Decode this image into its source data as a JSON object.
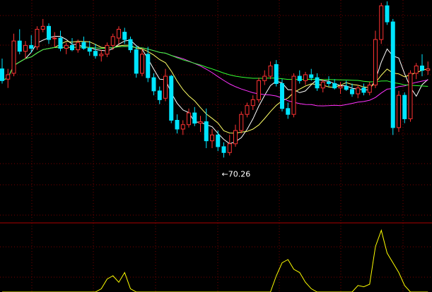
{
  "chart_data": {
    "type": "candlestick",
    "title": "",
    "grid": "dotted",
    "price_range": [
      68.5,
      80.8
    ],
    "colors": {
      "up": "#ff3232",
      "down": "#00e5ff",
      "ma_white": "#ffffff",
      "ma_yellow": "#ffff66",
      "ma_magenta": "#ff33ff",
      "ma_green": "#33ff33",
      "indicator": "#ffff00",
      "grid": "#7a0000",
      "separator": "#aa0000"
    },
    "min_marker": {
      "label": "←70.26",
      "value": 70.26,
      "candle_index": 38
    },
    "candles": [
      [
        76.3,
        77.0,
        75.3,
        75.5
      ],
      [
        75.6,
        76.3,
        75.0,
        75.9
      ],
      [
        76.0,
        78.7,
        75.8,
        78.2
      ],
      [
        78.2,
        79.0,
        77.3,
        77.5
      ],
      [
        77.5,
        78.2,
        77.0,
        77.9
      ],
      [
        77.9,
        78.6,
        77.4,
        77.7
      ],
      [
        77.8,
        79.2,
        77.6,
        79.0
      ],
      [
        79.0,
        79.7,
        78.8,
        79.2
      ],
      [
        79.2,
        79.4,
        78.0,
        78.3
      ],
      [
        78.4,
        78.8,
        77.8,
        78.4
      ],
      [
        78.4,
        78.9,
        77.5,
        77.7
      ],
      [
        77.7,
        78.1,
        77.3,
        77.9
      ],
      [
        77.9,
        78.4,
        77.5,
        77.6
      ],
      [
        77.6,
        78.3,
        77.4,
        78.1
      ],
      [
        78.1,
        78.5,
        77.6,
        77.7
      ],
      [
        77.7,
        78.2,
        77.2,
        77.5
      ],
      [
        77.5,
        78.0,
        77.0,
        77.2
      ],
      [
        77.2,
        77.6,
        76.8,
        77.3
      ],
      [
        77.3,
        78.1,
        77.1,
        77.9
      ],
      [
        77.9,
        78.7,
        77.6,
        78.5
      ],
      [
        78.4,
        79.2,
        78.0,
        79.0
      ],
      [
        78.8,
        79.1,
        78.0,
        78.3
      ],
      [
        78.3,
        78.5,
        77.4,
        77.6
      ],
      [
        77.6,
        77.9,
        75.7,
        76.0
      ],
      [
        76.0,
        77.7,
        75.8,
        77.3
      ],
      [
        77.3,
        77.8,
        75.4,
        75.7
      ],
      [
        75.7,
        76.0,
        74.5,
        74.8
      ],
      [
        74.8,
        75.1,
        73.9,
        74.2
      ],
      [
        74.3,
        76.3,
        74.1,
        75.8
      ],
      [
        75.8,
        75.9,
        72.6,
        72.8
      ],
      [
        72.8,
        73.2,
        71.9,
        72.2
      ],
      [
        72.2,
        72.8,
        71.8,
        72.5
      ],
      [
        72.5,
        73.6,
        72.3,
        73.3
      ],
      [
        73.3,
        73.7,
        72.4,
        72.6
      ],
      [
        72.6,
        73.1,
        72.0,
        72.7
      ],
      [
        72.7,
        73.6,
        70.9,
        71.4
      ],
      [
        71.4,
        72.2,
        70.9,
        71.8
      ],
      [
        71.8,
        72.1,
        70.7,
        71.0
      ],
      [
        71.0,
        71.3,
        70.26,
        70.6
      ],
      [
        70.6,
        71.8,
        70.4,
        71.2
      ],
      [
        71.2,
        72.5,
        71.0,
        72.1
      ],
      [
        72.1,
        73.4,
        71.9,
        73.2
      ],
      [
        73.2,
        74.0,
        73.0,
        73.8
      ],
      [
        73.8,
        74.5,
        73.5,
        74.2
      ],
      [
        74.2,
        75.7,
        74.0,
        75.5
      ],
      [
        75.5,
        76.2,
        75.2,
        75.8
      ],
      [
        75.8,
        76.8,
        75.6,
        76.5
      ],
      [
        76.6,
        76.9,
        75.1,
        75.3
      ],
      [
        75.3,
        75.6,
        73.4,
        73.6
      ],
      [
        73.6,
        74.0,
        72.9,
        73.2
      ],
      [
        73.2,
        76.0,
        73.0,
        75.8
      ],
      [
        75.8,
        76.2,
        75.3,
        75.5
      ],
      [
        75.5,
        76.1,
        75.2,
        75.9
      ],
      [
        75.9,
        76.3,
        75.5,
        75.7
      ],
      [
        75.7,
        76.0,
        74.8,
        75.0
      ],
      [
        75.0,
        75.6,
        74.7,
        75.4
      ],
      [
        75.4,
        75.8,
        75.1,
        75.3
      ],
      [
        75.3,
        75.6,
        74.9,
        75.0
      ],
      [
        75.0,
        75.4,
        74.6,
        75.1
      ],
      [
        75.1,
        75.5,
        74.8,
        74.9
      ],
      [
        74.9,
        75.3,
        74.4,
        74.6
      ],
      [
        74.6,
        75.2,
        74.3,
        75.0
      ],
      [
        75.0,
        75.3,
        74.5,
        74.7
      ],
      [
        74.7,
        75.4,
        74.5,
        75.2
      ],
      [
        75.2,
        78.9,
        75.0,
        78.3
      ],
      [
        78.3,
        80.8,
        78.0,
        80.6
      ],
      [
        80.6,
        80.9,
        79.3,
        79.5
      ],
      [
        79.5,
        79.7,
        71.8,
        72.3
      ],
      [
        72.3,
        74.8,
        72.0,
        74.5
      ],
      [
        74.5,
        74.7,
        72.6,
        72.9
      ],
      [
        72.9,
        76.2,
        72.7,
        76.0
      ],
      [
        76.0,
        76.7,
        75.6,
        76.5
      ],
      [
        76.5,
        77.3,
        75.8,
        76.2
      ],
      [
        76.2,
        76.8,
        75.9,
        76.3
      ]
    ],
    "indicator": {
      "range": [
        0,
        1
      ],
      "values": [
        0,
        0,
        0,
        0,
        0,
        0,
        0,
        0,
        0,
        0,
        0,
        0,
        0,
        0,
        0,
        0,
        0,
        0.05,
        0.2,
        0.25,
        0.15,
        0.3,
        0.05,
        0,
        0,
        0,
        0,
        0,
        0,
        0,
        0,
        0,
        0,
        0,
        0,
        0,
        0,
        0,
        0,
        0,
        0,
        0,
        0,
        0,
        0,
        0,
        0,
        0.25,
        0.45,
        0.5,
        0.35,
        0.3,
        0.15,
        0.05,
        0,
        0,
        0,
        0,
        0,
        0,
        0,
        0.1,
        0.08,
        0.12,
        0.7,
        0.95,
        0.6,
        0.45,
        0.3,
        0.1,
        0,
        0,
        0,
        0
      ]
    }
  }
}
